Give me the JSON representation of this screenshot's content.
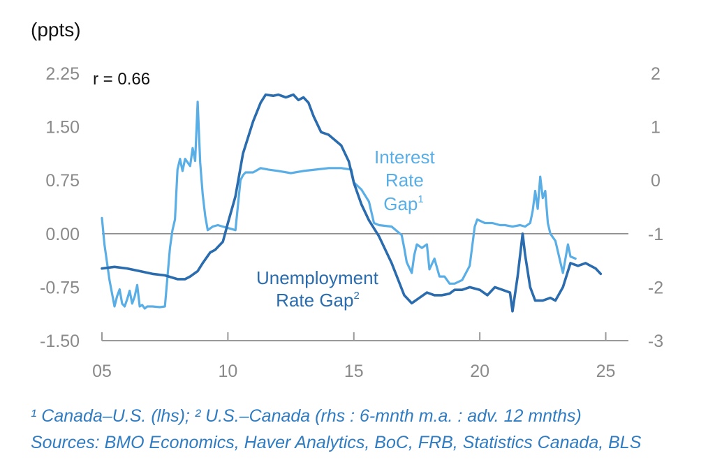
{
  "colors": {
    "interest_rate_gap": "#5aaee6",
    "unemployment_rate_gap": "#2a6cad",
    "zero_line": "#8c8c8c",
    "axis": "#999999",
    "footnote": "#2f7cc2"
  },
  "chart_data": {
    "type": "line",
    "unit_label": "(ppts)",
    "correlation_label": "r = 0.66",
    "x_axis": {
      "range": [
        2005,
        2025.9
      ],
      "ticks": [
        2005,
        2010,
        2015,
        2020,
        2025
      ],
      "tick_labels": [
        "05",
        "10",
        "15",
        "20",
        "25"
      ]
    },
    "y_left": {
      "range": [
        -1.5,
        2.25
      ],
      "ticks": [
        2.25,
        1.5,
        0.75,
        0.0,
        -0.75,
        -1.5
      ],
      "tick_labels": [
        "2.25",
        "1.50",
        "0.75",
        "0.00",
        "-0.75",
        "-1.50"
      ]
    },
    "y_right": {
      "range": [
        -3,
        2
      ],
      "ticks": [
        2,
        1,
        0,
        -1,
        -2,
        -3
      ],
      "tick_labels": [
        "2",
        "1",
        "0",
        "-1",
        "-2",
        "-3"
      ]
    },
    "zero_line": 0,
    "series": [
      {
        "name": "Interest Rate Gap",
        "label_lines": [
          "Interest",
          "Rate",
          "Gap"
        ],
        "superscript": "1",
        "axis": "left",
        "x": [
          2005.0,
          2005.1,
          2005.3,
          2005.5,
          2005.6,
          2005.7,
          2005.8,
          2005.9,
          2006.0,
          2006.1,
          2006.2,
          2006.3,
          2006.4,
          2006.5,
          2006.6,
          2006.7,
          2006.8,
          2006.9,
          2007.0,
          2007.3,
          2007.5,
          2007.7,
          2007.8,
          2007.9,
          2008.0,
          2008.1,
          2008.2,
          2008.3,
          2008.5,
          2008.6,
          2008.7,
          2008.8,
          2008.9,
          2009.0,
          2009.1,
          2009.2,
          2009.4,
          2009.6,
          2009.8,
          2010.0,
          2010.3,
          2010.5,
          2010.6,
          2010.7,
          2011.0,
          2011.3,
          2011.6,
          2012.0,
          2012.5,
          2013.0,
          2013.5,
          2014.0,
          2014.5,
          2014.9,
          2015.0,
          2015.3,
          2015.6,
          2015.8,
          2016.0,
          2016.5,
          2016.9,
          2017.0,
          2017.1,
          2017.3,
          2017.4,
          2017.5,
          2017.7,
          2017.9,
          2018.0,
          2018.2,
          2018.4,
          2018.6,
          2018.8,
          2019.0,
          2019.3,
          2019.6,
          2019.8,
          2019.9,
          2020.2,
          2020.5,
          2020.8,
          2021.0,
          2021.3,
          2021.6,
          2021.8,
          2022.0,
          2022.1,
          2022.2,
          2022.3,
          2022.4,
          2022.5,
          2022.6,
          2022.7,
          2022.8,
          2022.9,
          2023.0,
          2023.2,
          2023.3,
          2023.5,
          2023.6,
          2023.8
        ],
        "values": [
          0.22,
          -0.15,
          -0.65,
          -1.02,
          -0.88,
          -0.78,
          -0.98,
          -1.02,
          -0.92,
          -0.8,
          -0.98,
          -0.88,
          -0.72,
          -1.02,
          -1.0,
          -1.05,
          -1.02,
          -1.02,
          -1.02,
          -1.03,
          -1.02,
          -0.2,
          0.05,
          0.2,
          0.9,
          1.05,
          0.88,
          1.05,
          0.95,
          1.2,
          1.02,
          1.85,
          1.0,
          0.55,
          0.25,
          0.05,
          0.1,
          0.12,
          0.1,
          0.08,
          0.05,
          0.75,
          0.82,
          0.86,
          0.86,
          0.92,
          0.9,
          0.88,
          0.85,
          0.88,
          0.9,
          0.92,
          0.92,
          0.9,
          0.72,
          0.62,
          0.45,
          0.15,
          0.12,
          0.1,
          -0.02,
          -0.2,
          -0.4,
          -0.55,
          -0.3,
          -0.15,
          -0.2,
          -0.15,
          -0.5,
          -0.35,
          -0.6,
          -0.6,
          -0.7,
          -0.7,
          -0.65,
          -0.45,
          0.1,
          0.2,
          0.15,
          0.15,
          0.12,
          0.12,
          0.1,
          0.12,
          0.1,
          0.15,
          0.32,
          0.6,
          0.35,
          0.8,
          0.5,
          0.6,
          0.15,
          0.0,
          -0.05,
          -0.1,
          -0.4,
          -0.55,
          -0.15,
          -0.32,
          -0.35
        ]
      },
      {
        "name": "Unemployment Rate Gap",
        "label_lines": [
          "Unemployment",
          "Rate Gap"
        ],
        "superscript": "2",
        "axis": "right",
        "x": [
          2005.0,
          2005.5,
          2006.0,
          2006.5,
          2007.0,
          2007.5,
          2008.0,
          2008.3,
          2008.5,
          2008.8,
          2009.0,
          2009.3,
          2009.5,
          2009.8,
          2010.0,
          2010.3,
          2010.6,
          2011.0,
          2011.3,
          2011.5,
          2011.8,
          2012.0,
          2012.3,
          2012.6,
          2012.8,
          2013.0,
          2013.2,
          2013.4,
          2013.7,
          2014.0,
          2014.5,
          2014.8,
          2015.0,
          2015.3,
          2015.6,
          2016.0,
          2016.5,
          2017.0,
          2017.3,
          2017.6,
          2017.9,
          2018.2,
          2018.5,
          2018.8,
          2019.0,
          2019.3,
          2019.6,
          2020.0,
          2020.3,
          2020.6,
          2020.9,
          2021.2,
          2021.3,
          2021.5,
          2021.7,
          2021.8,
          2022.0,
          2022.2,
          2022.5,
          2022.8,
          2023.0,
          2023.3,
          2023.6,
          2023.9,
          2024.2,
          2024.4,
          2024.6,
          2024.8
        ],
        "values": [
          -1.65,
          -1.62,
          -1.65,
          -1.7,
          -1.75,
          -1.78,
          -1.85,
          -1.85,
          -1.8,
          -1.7,
          -1.55,
          -1.35,
          -1.3,
          -1.15,
          -0.8,
          -0.3,
          0.5,
          1.1,
          1.45,
          1.6,
          1.58,
          1.6,
          1.55,
          1.6,
          1.5,
          1.55,
          1.45,
          1.2,
          0.9,
          0.85,
          0.65,
          0.35,
          -0.05,
          -0.45,
          -0.75,
          -1.05,
          -1.55,
          -2.15,
          -2.3,
          -2.2,
          -2.1,
          -2.15,
          -2.15,
          -2.12,
          -2.05,
          -2.05,
          -2.0,
          -2.05,
          -2.15,
          -2.0,
          -2.05,
          -2.1,
          -2.45,
          -1.8,
          -1.0,
          -1.4,
          -2.0,
          -2.25,
          -2.25,
          -2.2,
          -2.25,
          -2.0,
          -1.55,
          -1.6,
          -1.55,
          -1.6,
          -1.65,
          -1.75
        ]
      }
    ]
  },
  "footnotes": {
    "line1": "¹ Canada–U.S. (lhs); ² U.S.–Canada (rhs : 6-mnth m.a. : adv. 12 mnths)",
    "line2": "Sources: BMO Economics, Haver Analytics, BoC, FRB, Statistics Canada, BLS"
  }
}
